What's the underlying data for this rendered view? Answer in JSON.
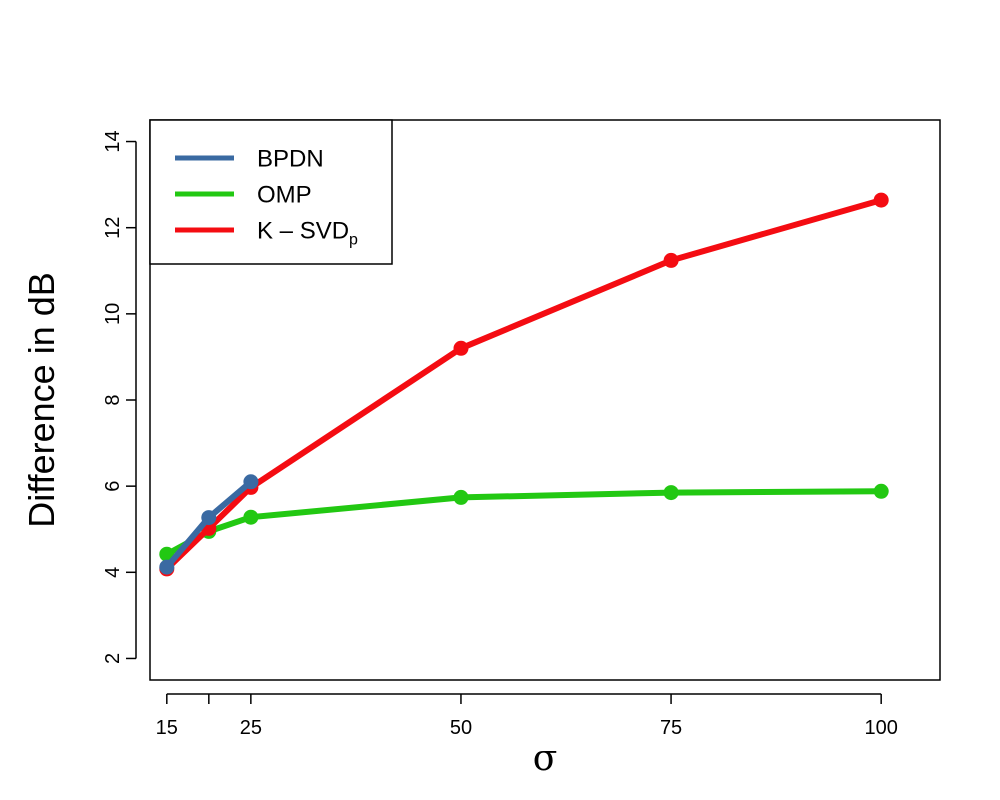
{
  "chart_data": {
    "type": "line",
    "title": "",
    "xlabel": "σ",
    "ylabel": "Difference in dB",
    "x_ticks": [
      15,
      20,
      25,
      50,
      75,
      100
    ],
    "x_tick_labels": [
      "15",
      "",
      "25",
      "50",
      "75",
      "100"
    ],
    "y_ticks": [
      2,
      4,
      6,
      8,
      10,
      12,
      14
    ],
    "y_tick_labels": [
      "2",
      "4",
      "6",
      "8",
      "10",
      "12",
      "14"
    ],
    "xlim": [
      13,
      107
    ],
    "ylim": [
      1.5,
      14.5
    ],
    "grid": false,
    "legend_position": "top-left",
    "series": [
      {
        "name": "OMP",
        "color": "#22c812",
        "x": [
          15,
          20,
          25,
          50,
          75,
          100
        ],
        "y": [
          4.42,
          4.95,
          5.28,
          5.74,
          5.85,
          5.88
        ]
      },
      {
        "name": "K – SVD",
        "name_subscript": "p",
        "color": "#f40c12",
        "x": [
          15,
          20,
          25,
          50,
          75,
          100
        ],
        "y": [
          4.08,
          5.02,
          5.97,
          9.2,
          11.24,
          12.64
        ]
      },
      {
        "name": "BPDN",
        "color": "#3a6aa2",
        "x": [
          15,
          20,
          25
        ],
        "y": [
          4.12,
          5.27,
          6.1
        ]
      }
    ],
    "legend_order": [
      "BPDN",
      "OMP",
      "K – SVD"
    ]
  }
}
